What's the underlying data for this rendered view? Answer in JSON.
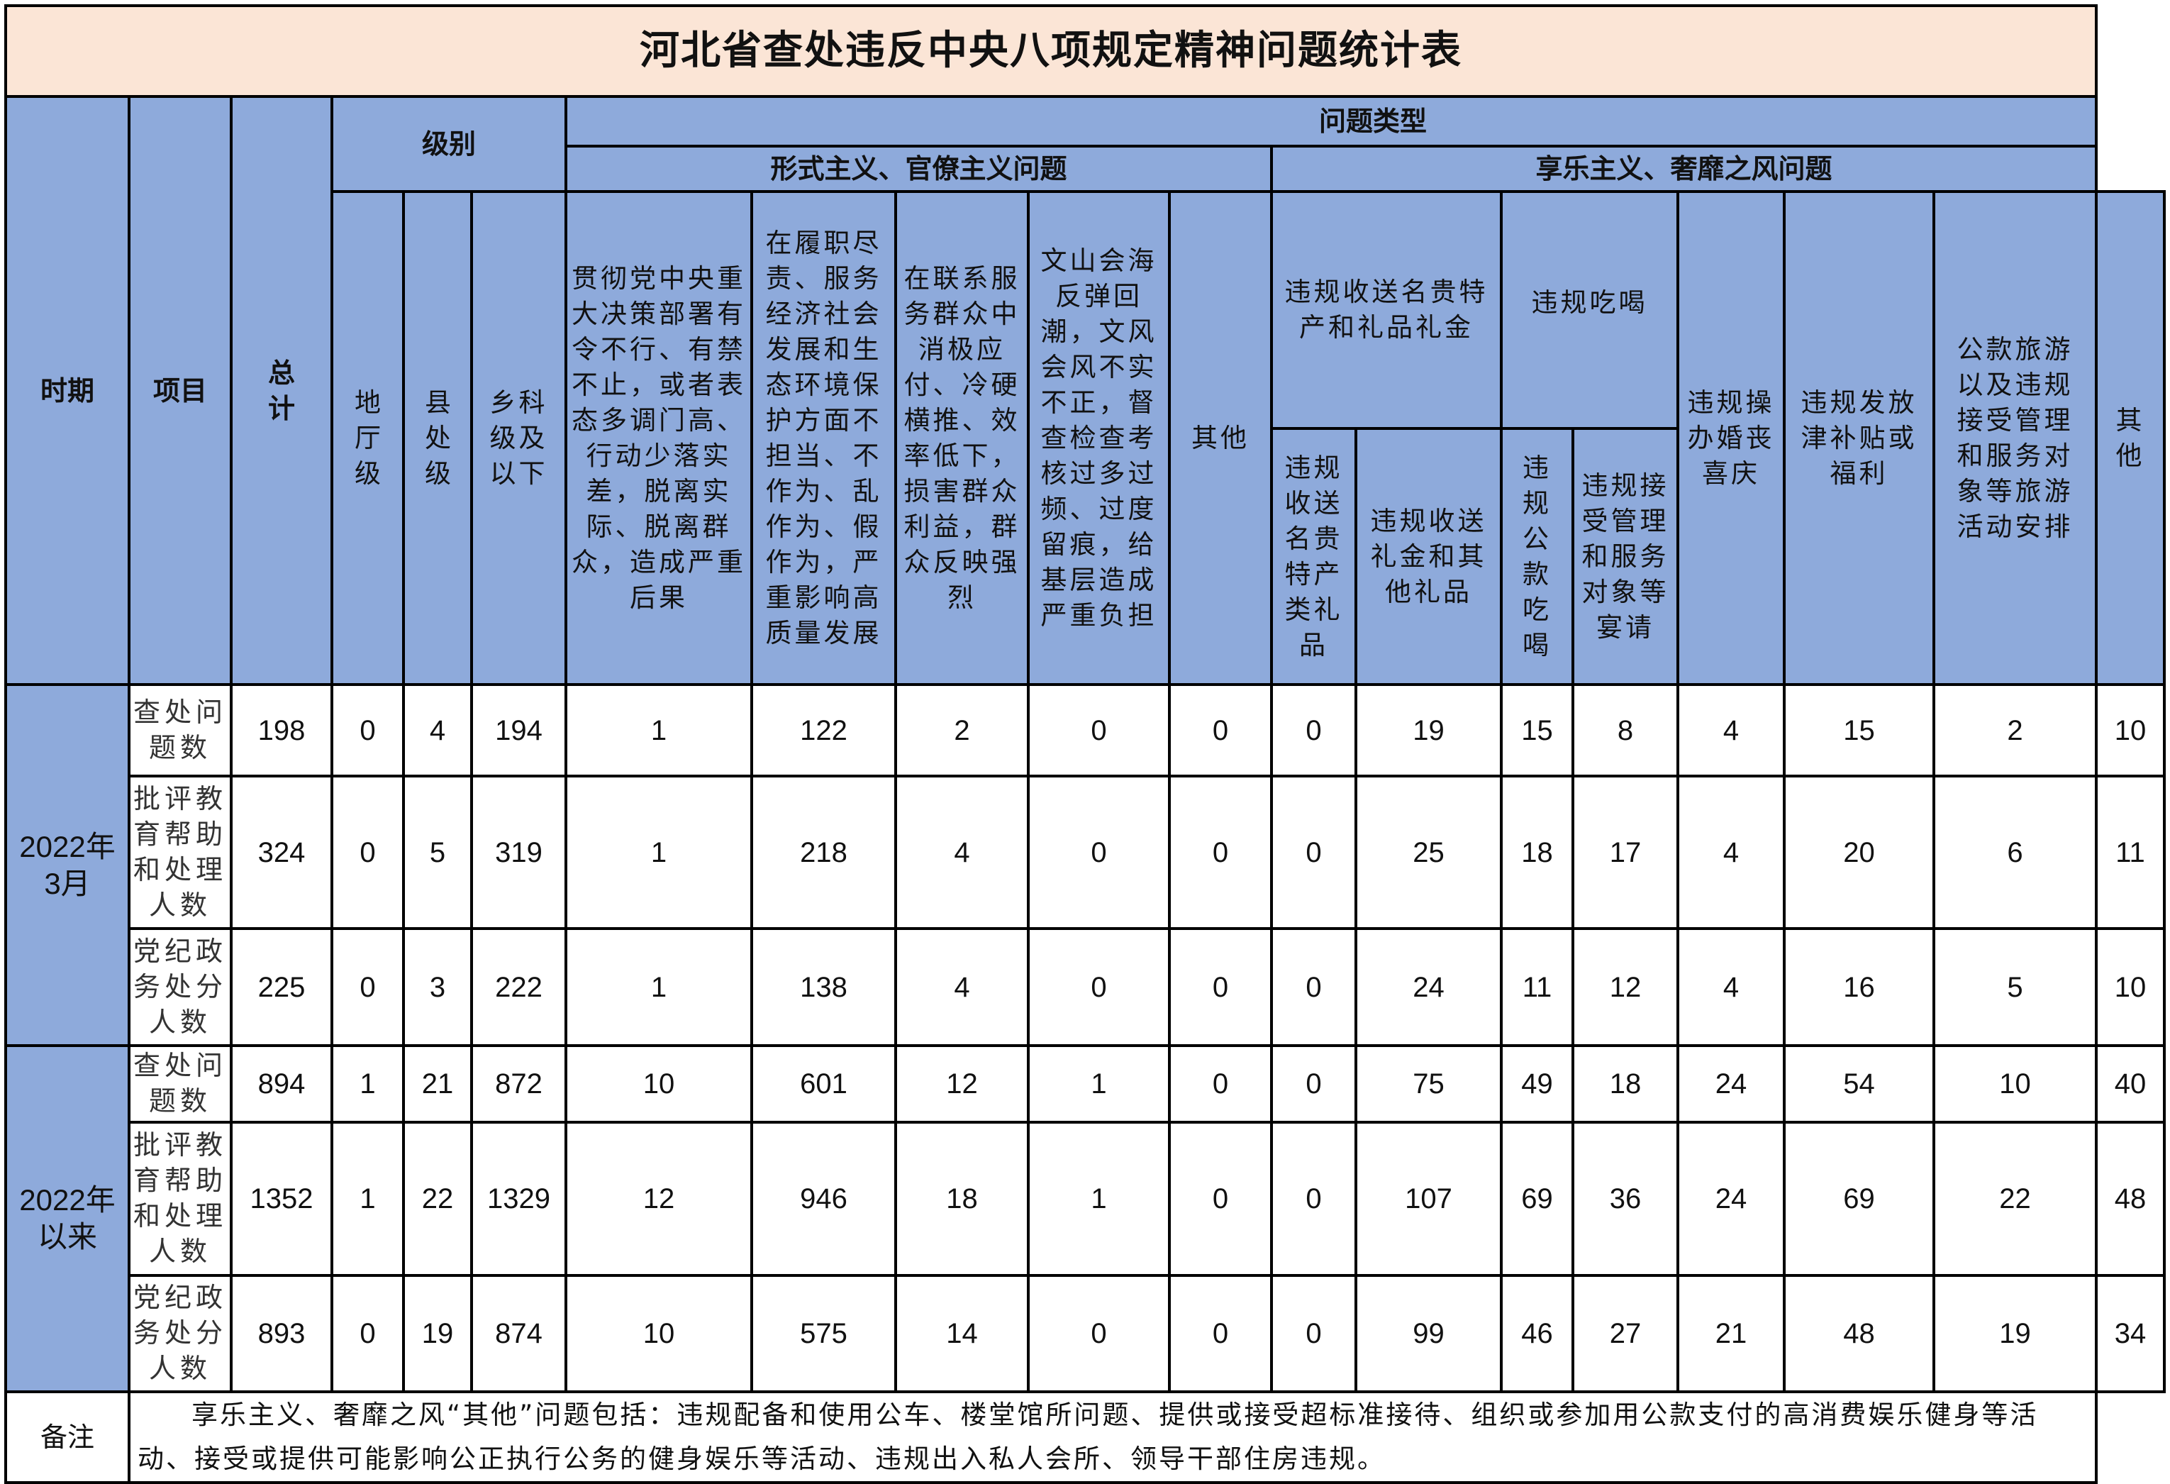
{
  "title": "河北省查处违反中央八项规定精神问题统计表",
  "headers": {
    "period": "时期",
    "item": "项目",
    "total": "总计",
    "level": "级别",
    "problem_type": "问题类型",
    "formalism": "形式主义、官僚主义问题",
    "hedonism": "享乐主义、奢靡之风问题",
    "level_cols": [
      "地厅级",
      "县处级",
      "乡科级及以下"
    ],
    "formalism_cols": [
      "贯彻党中央重大决策部署有令不行、有禁不止，或者表态多调门高、行动少落实差，脱离实际、脱离群众，造成严重后果",
      "在履职尽责、服务经济社会发展和生态环境保护方面不担当、不作为、乱作为、假作为，严重影响高质量发展",
      "在联系服务群众中消极应付、冷硬横推、效率低下，损害群众利益，群众反映强烈",
      "文山会海反弹回潮，文风会风不实不正，督查检查考核过多过频、过度留痕，给基层造成严重负担",
      "其他"
    ],
    "gift": "违规收送名贵特产和礼品礼金",
    "gift_sub": [
      "违规收送名贵特产类礼品",
      "违规收送礼金和其他礼品"
    ],
    "dining": "违规吃喝",
    "dining_sub": [
      "违规公款吃喝",
      "违规接受管理和服务对象等宴请"
    ],
    "weddings": "违规操办婚丧喜庆",
    "allowance": "违规发放津补贴或福利",
    "travel": "公款旅游以及违规接受管理和服务对象等旅游活动安排",
    "other": "其他"
  },
  "periods": [
    {
      "label": "2022年3月",
      "rows": [
        {
          "item": "查处问题数",
          "values": [
            198,
            0,
            4,
            194,
            1,
            122,
            2,
            0,
            0,
            0,
            19,
            15,
            8,
            4,
            15,
            2,
            10
          ]
        },
        {
          "item": "批评教育帮助和处理人数",
          "values": [
            324,
            0,
            5,
            319,
            1,
            218,
            4,
            0,
            0,
            0,
            25,
            18,
            17,
            4,
            20,
            6,
            11
          ]
        },
        {
          "item": "党纪政务处分人数",
          "values": [
            225,
            0,
            3,
            222,
            1,
            138,
            4,
            0,
            0,
            0,
            24,
            11,
            12,
            4,
            16,
            5,
            10
          ]
        }
      ]
    },
    {
      "label": "2022年以来",
      "rows": [
        {
          "item": "查处问题数",
          "values": [
            894,
            1,
            21,
            872,
            10,
            601,
            12,
            1,
            0,
            0,
            75,
            49,
            18,
            24,
            54,
            10,
            40
          ]
        },
        {
          "item": "批评教育帮助和处理人数",
          "values": [
            1352,
            1,
            22,
            1329,
            12,
            946,
            18,
            1,
            0,
            0,
            107,
            69,
            36,
            24,
            69,
            22,
            48
          ]
        },
        {
          "item": "党纪政务处分人数",
          "values": [
            893,
            0,
            19,
            874,
            10,
            575,
            14,
            0,
            0,
            0,
            99,
            46,
            27,
            21,
            48,
            19,
            34
          ]
        }
      ]
    }
  ],
  "note": {
    "label": "备注",
    "text": "享乐主义、奢靡之风“其他”问题包括：违规配备和使用公车、楼堂馆所问题、提供或接受超标准接待、组织或参加用公款支付的高消费娱乐健身等活动、接受或提供可能影响公正执行公务的健身娱乐等活动、违规出入私人会所、领导干部住房违规。"
  },
  "colors": {
    "header_bg": "#8eaadb",
    "title_bg": "#fbe5d6",
    "border": "#000000"
  }
}
